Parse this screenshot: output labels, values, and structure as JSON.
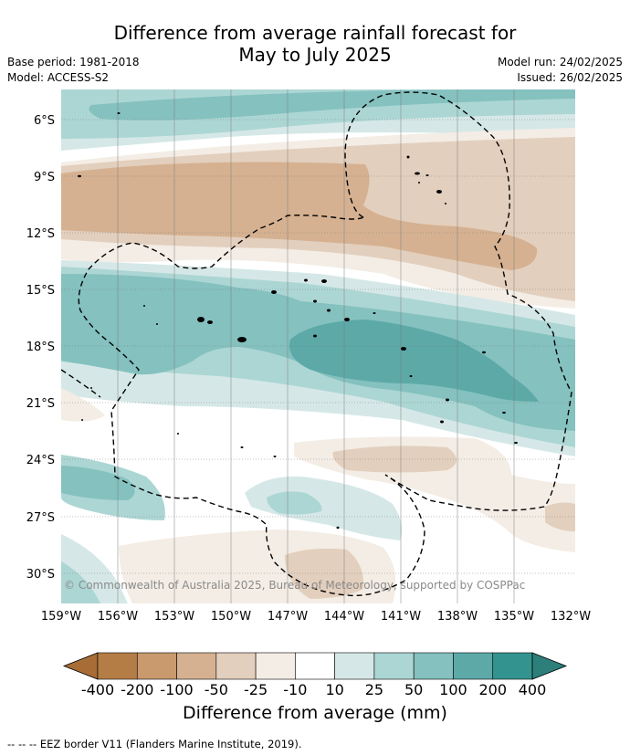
{
  "title_line1": "Difference from average rainfall forecast for",
  "title_line2": "May to July 2025",
  "base_period": "Base period: 1981-2018",
  "model": "Model: ACCESS-S2",
  "model_run": "Model run: 24/02/2025",
  "issued": "Issued: 26/02/2025",
  "credit": "© Commonwealth of Australia 2025, Bureau of Meteorology, supported by COSPPac",
  "footer": "--  --  -- EEZ border V11 (Flanders Marine Institute, 2019).",
  "colorbar": {
    "label": "Difference from average (mm)",
    "ticks": [
      "-400",
      "-200",
      "-100",
      "-50",
      "-25",
      "-10",
      "10",
      "25",
      "50",
      "100",
      "200",
      "400"
    ],
    "colors": [
      "#a86c36",
      "#b47d46",
      "#c89a6e",
      "#d5b191",
      "#e3cfbd",
      "#f3ede5",
      "#ffffff",
      "#d5e8e7",
      "#acd6d4",
      "#84c1bf",
      "#5ca9a8",
      "#33948f",
      "#2c7f7a"
    ]
  },
  "axes": {
    "x_ticks": [
      "159°W",
      "156°W",
      "153°W",
      "150°W",
      "147°W",
      "144°W",
      "141°W",
      "138°W",
      "135°W",
      "132°W"
    ],
    "y_ticks": [
      "6°S",
      "9°S",
      "12°S",
      "15°S",
      "18°S",
      "21°S",
      "24°S",
      "27°S",
      "30°S"
    ]
  }
}
